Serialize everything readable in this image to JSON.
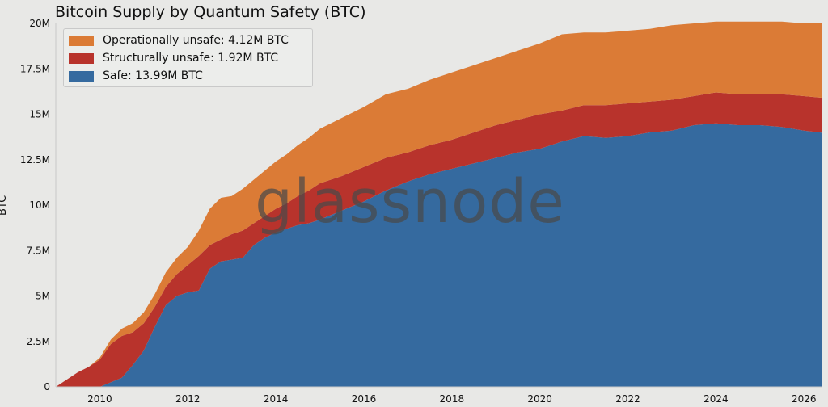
{
  "chart_data": {
    "type": "area",
    "stacked": true,
    "title": "Bitcoin Supply by Quantum Safety (BTC)",
    "xlabel": "",
    "ylabel": "BTC",
    "xlim": [
      2009.0,
      2026.4
    ],
    "ylim": [
      0,
      20000000
    ],
    "x_ticks": [
      "2010",
      "2012",
      "2014",
      "2016",
      "2018",
      "2020",
      "2022",
      "2024",
      "2026"
    ],
    "y_ticks": [
      "0",
      "2.5M",
      "5M",
      "7.5M",
      "10M",
      "12.5M",
      "15M",
      "17.5M",
      "20M"
    ],
    "grid": false,
    "legend_position": "top-left",
    "watermark": "glassnode",
    "x": [
      2009.0,
      2009.25,
      2009.5,
      2009.75,
      2010.0,
      2010.25,
      2010.5,
      2010.75,
      2011.0,
      2011.25,
      2011.5,
      2011.75,
      2012.0,
      2012.25,
      2012.5,
      2012.75,
      2013.0,
      2013.25,
      2013.5,
      2013.75,
      2014.0,
      2014.25,
      2014.5,
      2014.75,
      2015.0,
      2015.5,
      2016.0,
      2016.5,
      2017.0,
      2017.5,
      2018.0,
      2018.5,
      2019.0,
      2019.5,
      2020.0,
      2020.5,
      2021.0,
      2021.5,
      2022.0,
      2022.5,
      2023.0,
      2023.5,
      2024.0,
      2024.5,
      2025.0,
      2025.5,
      2026.0,
      2026.4
    ],
    "series": [
      {
        "name": "Safe: 13.99M BTC",
        "color": "#356a9f",
        "values": [
          0,
          0,
          0,
          0,
          0,
          250000,
          500000,
          1200000,
          2000000,
          3300000,
          4500000,
          5000000,
          5200000,
          5300000,
          6500000,
          6900000,
          7000000,
          7100000,
          7800000,
          8200000,
          8500000,
          8700000,
          8900000,
          9000000,
          9200000,
          9700000,
          10200000,
          10800000,
          11300000,
          11700000,
          12000000,
          12300000,
          12600000,
          12900000,
          13100000,
          13500000,
          13800000,
          13700000,
          13800000,
          14000000,
          14100000,
          14400000,
          14500000,
          14400000,
          14400000,
          14300000,
          14100000,
          13990000
        ]
      },
      {
        "name": "Structurally unsafe: 1.92M BTC",
        "color": "#b8332c",
        "values": [
          0,
          400000,
          800000,
          1100000,
          1500000,
          2100000,
          2300000,
          1800000,
          1500000,
          1100000,
          1000000,
          1200000,
          1500000,
          1900000,
          1300000,
          1200000,
          1400000,
          1500000,
          1200000,
          1200000,
          1300000,
          1400000,
          1600000,
          1800000,
          2000000,
          1900000,
          1900000,
          1800000,
          1600000,
          1600000,
          1600000,
          1700000,
          1800000,
          1800000,
          1900000,
          1700000,
          1700000,
          1800000,
          1800000,
          1700000,
          1700000,
          1600000,
          1700000,
          1700000,
          1700000,
          1800000,
          1900000,
          1920000
        ]
      },
      {
        "name": "Operationally unsafe: 4.12M BTC",
        "color": "#db7b36",
        "values": [
          0,
          0,
          0,
          0,
          100000,
          250000,
          400000,
          500000,
          600000,
          700000,
          800000,
          900000,
          1000000,
          1400000,
          2000000,
          2300000,
          2100000,
          2300000,
          2400000,
          2500000,
          2600000,
          2700000,
          2800000,
          2900000,
          3000000,
          3200000,
          3300000,
          3500000,
          3500000,
          3600000,
          3700000,
          3700000,
          3700000,
          3800000,
          3900000,
          4200000,
          4000000,
          4000000,
          4000000,
          4000000,
          4100000,
          4000000,
          3900000,
          4000000,
          4000000,
          4000000,
          4000000,
          4120000
        ]
      }
    ]
  }
}
